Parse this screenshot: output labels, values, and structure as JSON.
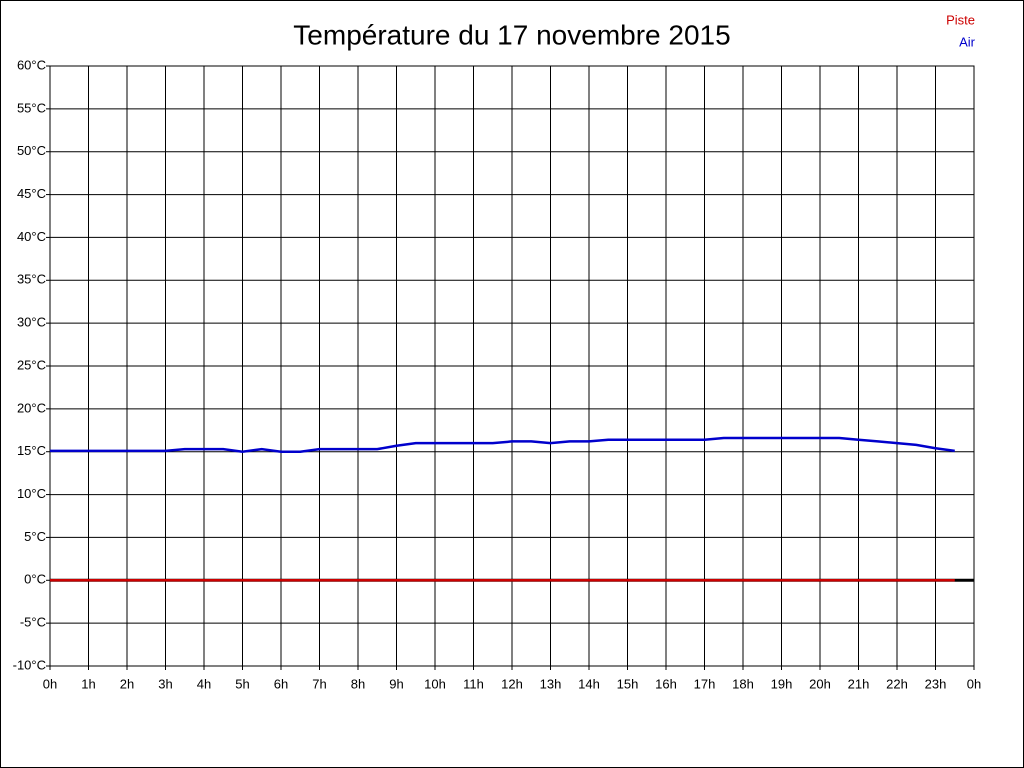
{
  "chart_data": {
    "type": "line",
    "title": "Température du 17 novembre 2015",
    "x": [
      0,
      0.5,
      1,
      1.5,
      2,
      2.5,
      3,
      3.5,
      4,
      4.5,
      5,
      5.5,
      6,
      6.5,
      7,
      7.5,
      8,
      8.5,
      9,
      9.5,
      10,
      10.5,
      11,
      11.5,
      12,
      12.5,
      13,
      13.5,
      14,
      14.5,
      15,
      15.5,
      16,
      16.5,
      17,
      17.5,
      18,
      18.5,
      19,
      19.5,
      20,
      20.5,
      21,
      21.5,
      22,
      22.5,
      23,
      23.5
    ],
    "series": [
      {
        "name": "Piste",
        "color": "#cc0000",
        "values": [
          0,
          0,
          0,
          0,
          0,
          0,
          0,
          0,
          0,
          0,
          0,
          0,
          0,
          0,
          0,
          0,
          0,
          0,
          0,
          0,
          0,
          0,
          0,
          0,
          0,
          0,
          0,
          0,
          0,
          0,
          0,
          0,
          0,
          0,
          0,
          0,
          0,
          0,
          0,
          0,
          0,
          0,
          0,
          0,
          0,
          0,
          0,
          0
        ]
      },
      {
        "name": "Air",
        "color": "#0000cc",
        "values": [
          15.1,
          15.1,
          15.1,
          15.1,
          15.1,
          15.1,
          15.1,
          15.3,
          15.3,
          15.3,
          15.0,
          15.3,
          15.0,
          15.0,
          15.3,
          15.3,
          15.3,
          15.3,
          15.7,
          16.0,
          16.0,
          16.0,
          16.0,
          16.0,
          16.2,
          16.2,
          16.0,
          16.2,
          16.2,
          16.4,
          16.4,
          16.4,
          16.4,
          16.4,
          16.4,
          16.6,
          16.6,
          16.6,
          16.6,
          16.6,
          16.6,
          16.6,
          16.4,
          16.2,
          16.0,
          15.8,
          15.4,
          15.1
        ]
      }
    ],
    "xlim": [
      0,
      24
    ],
    "xticks": [
      {
        "value": 0,
        "label": "0h"
      },
      {
        "value": 1,
        "label": "1h"
      },
      {
        "value": 2,
        "label": "2h"
      },
      {
        "value": 3,
        "label": "3h"
      },
      {
        "value": 4,
        "label": "4h"
      },
      {
        "value": 5,
        "label": "5h"
      },
      {
        "value": 6,
        "label": "6h"
      },
      {
        "value": 7,
        "label": "7h"
      },
      {
        "value": 8,
        "label": "8h"
      },
      {
        "value": 9,
        "label": "9h"
      },
      {
        "value": 10,
        "label": "10h"
      },
      {
        "value": 11,
        "label": "11h"
      },
      {
        "value": 12,
        "label": "12h"
      },
      {
        "value": 13,
        "label": "13h"
      },
      {
        "value": 14,
        "label": "14h"
      },
      {
        "value": 15,
        "label": "15h"
      },
      {
        "value": 16,
        "label": "16h"
      },
      {
        "value": 17,
        "label": "17h"
      },
      {
        "value": 18,
        "label": "18h"
      },
      {
        "value": 19,
        "label": "19h"
      },
      {
        "value": 20,
        "label": "20h"
      },
      {
        "value": 21,
        "label": "21h"
      },
      {
        "value": 22,
        "label": "22h"
      },
      {
        "value": 23,
        "label": "23h"
      },
      {
        "value": 24,
        "label": "0h"
      }
    ],
    "ylim": [
      -10,
      60
    ],
    "yticks": [
      {
        "value": -10,
        "label": "-10°C"
      },
      {
        "value": -5,
        "label": "-5°C"
      },
      {
        "value": 0,
        "label": "0°C"
      },
      {
        "value": 5,
        "label": "5°C"
      },
      {
        "value": 10,
        "label": "10°C"
      },
      {
        "value": 15,
        "label": "15°C"
      },
      {
        "value": 20,
        "label": "20°C"
      },
      {
        "value": 25,
        "label": "25°C"
      },
      {
        "value": 30,
        "label": "30°C"
      },
      {
        "value": 35,
        "label": "35°C"
      },
      {
        "value": 40,
        "label": "40°C"
      },
      {
        "value": 45,
        "label": "45°C"
      },
      {
        "value": 50,
        "label": "50°C"
      },
      {
        "value": 55,
        "label": "55°C"
      },
      {
        "value": 60,
        "label": "60°C"
      }
    ],
    "grid": true
  }
}
